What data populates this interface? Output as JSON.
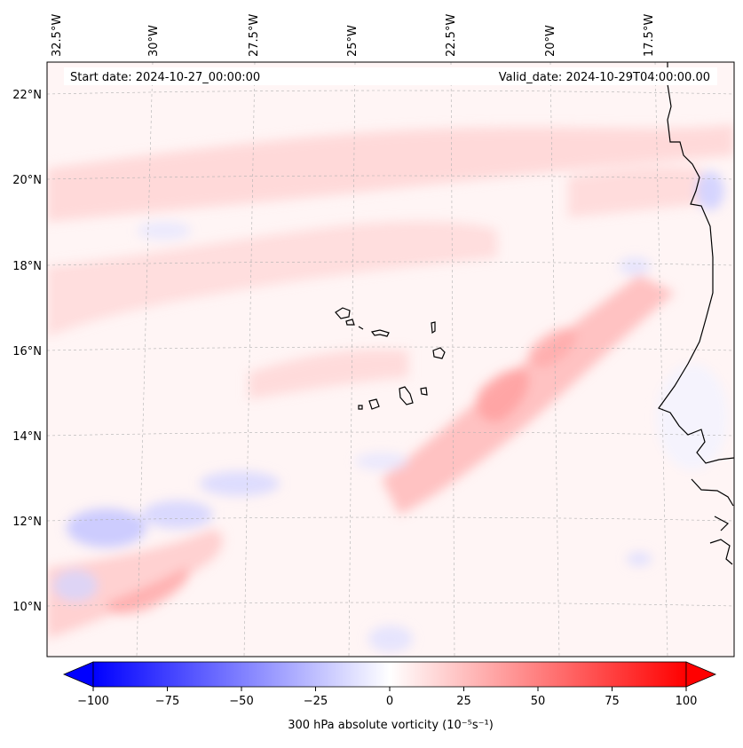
{
  "map": {
    "start_date_label": "Start date: 2024-10-27_00:00:00",
    "valid_date_label": "Valid_date: 2024-10-29T04:00:00.00",
    "lon_labels": [
      "32.5°W",
      "30°W",
      "27.5°W",
      "25°W",
      "22.5°W",
      "20°W",
      "17.5°W"
    ],
    "lat_labels": [
      "22°N",
      "20°N",
      "18°N",
      "16°N",
      "14°N",
      "12°N",
      "10°N"
    ],
    "gridlines": true,
    "colors": {
      "negative": "#0000ff",
      "zero": "#ffffff",
      "positive": "#ff0000",
      "coastline": "#000000",
      "gridline": "#b0b0b0"
    }
  },
  "colorbar": {
    "label": "300 hPa absolute vorticity (10⁻⁵s⁻¹)",
    "ticks": [
      "−100",
      "−75",
      "−50",
      "−25",
      "0",
      "25",
      "50",
      "75",
      "100"
    ],
    "min": -100,
    "max": 100,
    "extend": "both",
    "colormap": "bwr"
  },
  "chart_data": {
    "type": "heatmap",
    "title": "",
    "variable": "300 hPa absolute vorticity",
    "units": "10⁻⁵s⁻¹",
    "zlim": [
      -100,
      100
    ],
    "x_ticks": [
      "32.5°W",
      "30°W",
      "27.5°W",
      "25°W",
      "22.5°W",
      "20°W",
      "17.5°W"
    ],
    "y_ticks": [
      "22°N",
      "20°N",
      "18°N",
      "16°N",
      "14°N",
      "12°N",
      "10°N"
    ],
    "features": [
      {
        "name": "positive vorticity band",
        "approx_value": 30
      },
      {
        "name": "weak negative patches",
        "approx_value": -20
      }
    ]
  }
}
